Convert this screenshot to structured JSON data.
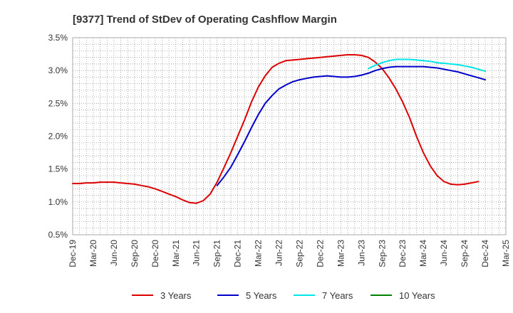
{
  "chart_data": {
    "type": "line",
    "title": "[9377]  Trend of StDev of Operating Cashflow Margin",
    "xlabel": "",
    "ylabel": "",
    "x_ticks": [
      "Dec-19",
      "Mar-20",
      "Jun-20",
      "Sep-20",
      "Dec-20",
      "Mar-21",
      "Jun-21",
      "Sep-21",
      "Dec-21",
      "Mar-22",
      "Jun-22",
      "Sep-22",
      "Dec-22",
      "Mar-23",
      "Jun-23",
      "Sep-23",
      "Dec-23",
      "Mar-24",
      "Jun-24",
      "Sep-24",
      "Dec-24",
      "Mar-25"
    ],
    "y_ticks": [
      "0.5%",
      "1.0%",
      "1.5%",
      "2.0%",
      "2.5%",
      "3.0%",
      "3.5%"
    ],
    "ylim": [
      0.5,
      3.5
    ],
    "grid": true,
    "legend_position": "bottom",
    "series": [
      {
        "name": "3 Years",
        "color": "#dd0000",
        "points": [
          [
            "Dec-19",
            1.28
          ],
          [
            "Jan-20",
            1.28
          ],
          [
            "Feb-20",
            1.29
          ],
          [
            "Mar-20",
            1.29
          ],
          [
            "Apr-20",
            1.3
          ],
          [
            "May-20",
            1.3
          ],
          [
            "Jun-20",
            1.3
          ],
          [
            "Jul-20",
            1.29
          ],
          [
            "Aug-20",
            1.28
          ],
          [
            "Sep-20",
            1.27
          ],
          [
            "Oct-20",
            1.25
          ],
          [
            "Nov-20",
            1.23
          ],
          [
            "Dec-20",
            1.2
          ],
          [
            "Jan-21",
            1.16
          ],
          [
            "Feb-21",
            1.12
          ],
          [
            "Mar-21",
            1.08
          ],
          [
            "Apr-21",
            1.03
          ],
          [
            "May-21",
            0.99
          ],
          [
            "Jun-21",
            0.98
          ],
          [
            "Jul-21",
            1.02
          ],
          [
            "Aug-21",
            1.12
          ],
          [
            "Sep-21",
            1.3
          ],
          [
            "Oct-21",
            1.52
          ],
          [
            "Nov-21",
            1.75
          ],
          [
            "Dec-21",
            2.0
          ],
          [
            "Jan-22",
            2.25
          ],
          [
            "Feb-22",
            2.52
          ],
          [
            "Mar-22",
            2.75
          ],
          [
            "Apr-22",
            2.92
          ],
          [
            "May-22",
            3.05
          ],
          [
            "Jun-22",
            3.11
          ],
          [
            "Jul-22",
            3.15
          ],
          [
            "Aug-22",
            3.16
          ],
          [
            "Sep-22",
            3.17
          ],
          [
            "Oct-22",
            3.18
          ],
          [
            "Nov-22",
            3.19
          ],
          [
            "Dec-22",
            3.2
          ],
          [
            "Jan-23",
            3.21
          ],
          [
            "Feb-23",
            3.22
          ],
          [
            "Mar-23",
            3.23
          ],
          [
            "Apr-23",
            3.24
          ],
          [
            "May-23",
            3.24
          ],
          [
            "Jun-23",
            3.23
          ],
          [
            "Jul-23",
            3.2
          ],
          [
            "Aug-23",
            3.13
          ],
          [
            "Sep-23",
            3.03
          ],
          [
            "Oct-23",
            2.89
          ],
          [
            "Nov-23",
            2.72
          ],
          [
            "Dec-23",
            2.52
          ],
          [
            "Jan-24",
            2.28
          ],
          [
            "Feb-24",
            2.0
          ],
          [
            "Mar-24",
            1.75
          ],
          [
            "Apr-24",
            1.55
          ],
          [
            "May-24",
            1.4
          ],
          [
            "Jun-24",
            1.31
          ],
          [
            "Jul-24",
            1.27
          ],
          [
            "Aug-24",
            1.26
          ],
          [
            "Sep-24",
            1.27
          ],
          [
            "Oct-24",
            1.29
          ],
          [
            "Nov-24",
            1.31
          ]
        ]
      },
      {
        "name": "5 Years",
        "color": "#0000cc",
        "points": [
          [
            "Sep-21",
            1.25
          ],
          [
            "Oct-21",
            1.38
          ],
          [
            "Nov-21",
            1.53
          ],
          [
            "Dec-21",
            1.72
          ],
          [
            "Jan-22",
            1.92
          ],
          [
            "Feb-22",
            2.13
          ],
          [
            "Mar-22",
            2.33
          ],
          [
            "Apr-22",
            2.5
          ],
          [
            "May-22",
            2.62
          ],
          [
            "Jun-22",
            2.72
          ],
          [
            "Jul-22",
            2.78
          ],
          [
            "Aug-22",
            2.83
          ],
          [
            "Sep-22",
            2.86
          ],
          [
            "Oct-22",
            2.88
          ],
          [
            "Nov-22",
            2.9
          ],
          [
            "Dec-22",
            2.91
          ],
          [
            "Jan-23",
            2.92
          ],
          [
            "Feb-23",
            2.91
          ],
          [
            "Mar-23",
            2.9
          ],
          [
            "Apr-23",
            2.9
          ],
          [
            "May-23",
            2.91
          ],
          [
            "Jun-23",
            2.93
          ],
          [
            "Jul-23",
            2.96
          ],
          [
            "Aug-23",
            3.0
          ],
          [
            "Sep-23",
            3.03
          ],
          [
            "Oct-23",
            3.05
          ],
          [
            "Nov-23",
            3.06
          ],
          [
            "Dec-23",
            3.06
          ],
          [
            "Jan-24",
            3.06
          ],
          [
            "Feb-24",
            3.06
          ],
          [
            "Mar-24",
            3.06
          ],
          [
            "Apr-24",
            3.05
          ],
          [
            "May-24",
            3.04
          ],
          [
            "Jun-24",
            3.02
          ],
          [
            "Jul-24",
            3.0
          ],
          [
            "Aug-24",
            2.98
          ],
          [
            "Sep-24",
            2.95
          ],
          [
            "Oct-24",
            2.92
          ],
          [
            "Nov-24",
            2.89
          ],
          [
            "Dec-24",
            2.86
          ]
        ]
      },
      {
        "name": "7 Years",
        "color": "#00e5e5",
        "points": [
          [
            "Jul-23",
            3.03
          ],
          [
            "Aug-23",
            3.08
          ],
          [
            "Sep-23",
            3.12
          ],
          [
            "Oct-23",
            3.15
          ],
          [
            "Nov-23",
            3.17
          ],
          [
            "Dec-23",
            3.17
          ],
          [
            "Jan-24",
            3.17
          ],
          [
            "Feb-24",
            3.16
          ],
          [
            "Mar-24",
            3.15
          ],
          [
            "Apr-24",
            3.14
          ],
          [
            "May-24",
            3.12
          ],
          [
            "Jun-24",
            3.11
          ],
          [
            "Jul-24",
            3.1
          ],
          [
            "Aug-24",
            3.09
          ],
          [
            "Sep-24",
            3.07
          ],
          [
            "Oct-24",
            3.05
          ],
          [
            "Nov-24",
            3.02
          ],
          [
            "Dec-24",
            2.99
          ]
        ]
      },
      {
        "name": "10 Years",
        "color": "#008000",
        "points": []
      }
    ]
  }
}
